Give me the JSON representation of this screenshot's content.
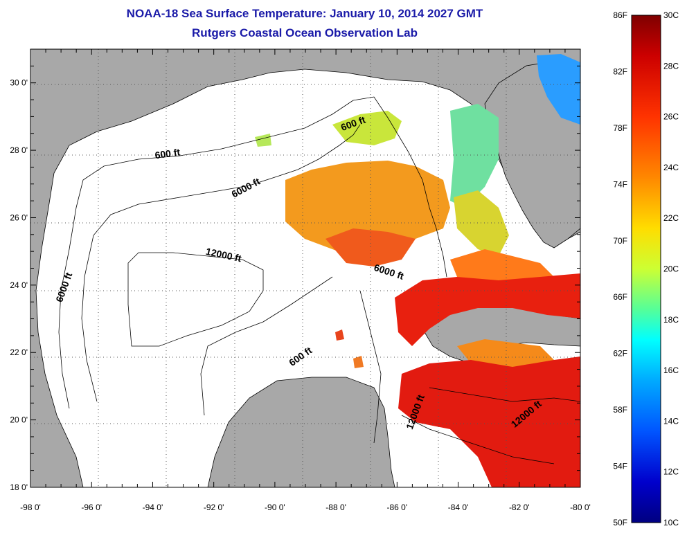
{
  "title_line1": "NOAA-18 Sea Surface Temperature:  January 10, 2014 2027 GMT",
  "title_line2": "Rutgers Coastal Ocean Observation Lab",
  "map": {
    "lon_range": [
      -98,
      -80
    ],
    "lat_range": [
      18,
      31
    ],
    "lon_ticks": [
      "-98 0'",
      "-96 0'",
      "-94 0'",
      "-92 0'",
      "-90 0'",
      "-88 0'",
      "-86 0'",
      "-84 0'",
      "-82 0'",
      "-80 0'"
    ],
    "lat_ticks": [
      "18 0'",
      "20 0'",
      "22 0'",
      "24 0'",
      "26 0'",
      "28 0'",
      "30 0'"
    ],
    "grid": "dotted",
    "land_color": "#a8a8a8",
    "contour_labels": [
      {
        "text": "600 ft",
        "lon": -87.4,
        "lat": 28.7,
        "rotate": -20
      },
      {
        "text": "600 ft",
        "lon": -93.5,
        "lat": 27.8,
        "rotate": -8
      },
      {
        "text": "6000 ft",
        "lon": -90.9,
        "lat": 26.8,
        "rotate": -28
      },
      {
        "text": "6000 ft",
        "lon": -96.8,
        "lat": 23.9,
        "rotate": -70
      },
      {
        "text": "12000 ft",
        "lon": -91.7,
        "lat": 24.8,
        "rotate": 12
      },
      {
        "text": "6000 ft",
        "lon": -86.3,
        "lat": 24.3,
        "rotate": 18
      },
      {
        "text": "600 ft",
        "lon": -89.1,
        "lat": 21.8,
        "rotate": -35
      },
      {
        "text": "12000 ft",
        "lon": -85.3,
        "lat": 20.2,
        "rotate": -70
      },
      {
        "text": "12000 ft",
        "lon": -81.7,
        "lat": 20.1,
        "rotate": -40
      }
    ]
  },
  "colorbar": {
    "f_labels": [
      "86F",
      "82F",
      "78F",
      "74F",
      "70F",
      "66F",
      "62F",
      "58F",
      "54F",
      "50F"
    ],
    "c_labels": [
      "30C",
      "28C",
      "26C",
      "24C",
      "22C",
      "20C",
      "18C",
      "16C",
      "14C",
      "12C",
      "10C"
    ],
    "colors": [
      "#7f0000",
      "#d40000",
      "#ff3300",
      "#ff8800",
      "#ffcc00",
      "#ffff33",
      "#99ff66",
      "#33ffcc",
      "#00ccff",
      "#0066ff",
      "#0000cc",
      "#000080"
    ]
  }
}
